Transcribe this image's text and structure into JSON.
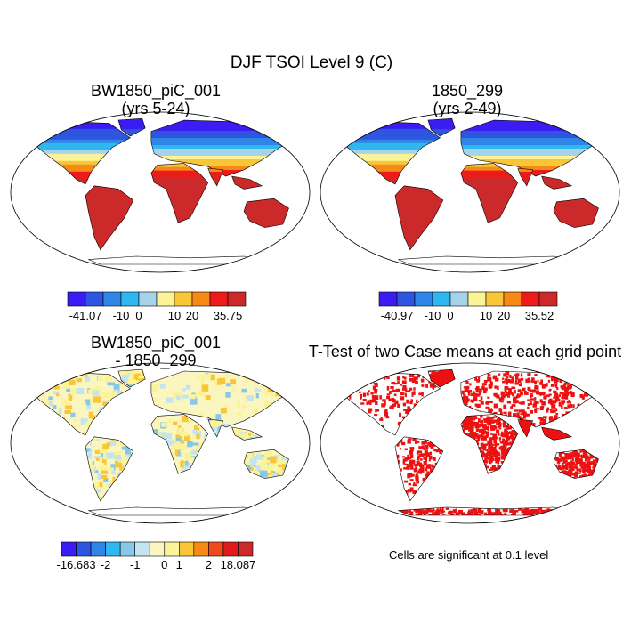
{
  "figure": {
    "title": "DJF TSOI Level 9 (C)"
  },
  "panels": {
    "p1": {
      "title1": "BW1850_piC_001",
      "title2": "(yrs 5-24)"
    },
    "p2": {
      "title1": "1850_299",
      "title2": "(yrs 2-49)"
    },
    "p3": {
      "title1": "BW1850_piC_001",
      "title2": "- 1850_299"
    },
    "p4": {
      "title1": "T-Test of two Case means at each grid point",
      "note": "Cells are significant at 0.1 level"
    }
  },
  "colorbars": {
    "cb1": {
      "labels": [
        "-41.07",
        "-10",
        "0",
        "10",
        "20",
        "35.75"
      ],
      "colors": [
        "#3b1cf2",
        "#2e55e0",
        "#2f86e6",
        "#2fb7ef",
        "#a7d3ea",
        "#fbf397",
        "#f9c638",
        "#f58b16",
        "#ee1b1b",
        "#cc2a2a"
      ]
    },
    "cb2": {
      "labels": [
        "-40.97",
        "-10",
        "0",
        "10",
        "20",
        "35.52"
      ],
      "colors": [
        "#3b1cf2",
        "#2e55e0",
        "#2f86e6",
        "#2fb7ef",
        "#a7d3ea",
        "#fbf397",
        "#f9c638",
        "#f58b16",
        "#ee1b1b",
        "#cc2a2a"
      ]
    },
    "cb3": {
      "labels": [
        "-16.683",
        "-2",
        "-1",
        "0",
        "1",
        "2",
        "18.087"
      ],
      "colors": [
        "#3b1cf2",
        "#2e55e0",
        "#2f86e6",
        "#2fb7ef",
        "#87c7ea",
        "#c4e4f0",
        "#fbf6bf",
        "#fbf397",
        "#f9c638",
        "#f58b16",
        "#ee4a1b",
        "#e01b1b",
        "#cc2a2a"
      ]
    }
  },
  "colors": {
    "significance": "#ee1111",
    "outline": "#000000"
  }
}
